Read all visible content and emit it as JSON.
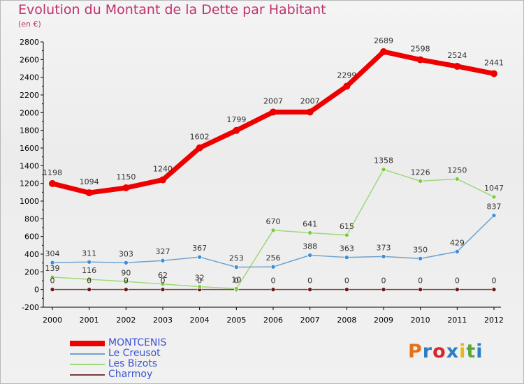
{
  "header": {
    "title": "Evolution du Montant de la Dette par Habitant",
    "subtitle": "(en €)"
  },
  "branding": {
    "logo_text": "Proxiti",
    "logo_colors": [
      "#e8701a",
      "#2a7fc4",
      "#d8262c",
      "#2a7fc4",
      "#e8b71a",
      "#58a83a",
      "#2a7fc4"
    ]
  },
  "chart_data": {
    "type": "line",
    "title": "Evolution du Montant de la Dette par Habitant",
    "ylabel": "(en €)",
    "xlabel": "",
    "x": [
      "2000",
      "2001",
      "2002",
      "2003",
      "2004",
      "2005",
      "2006",
      "2007",
      "2008",
      "2009",
      "2010",
      "2011",
      "2012"
    ],
    "ylim": [
      -200,
      2800
    ],
    "yticks": [
      -200,
      0,
      200,
      400,
      600,
      800,
      1000,
      1200,
      1400,
      1600,
      1800,
      2000,
      2200,
      2400,
      2600,
      2800
    ],
    "grid": false,
    "legend_position": "bottom-left",
    "series": [
      {
        "name": "MONTCENIS",
        "color": "#ee0000",
        "marker_color": "#ee0000",
        "values": [
          1198,
          1094,
          1150,
          1240,
          1602,
          1799,
          2007,
          2007,
          2299,
          2689,
          2598,
          2524,
          2441
        ],
        "labels": [
          "1198",
          "1094",
          "1150",
          "1240",
          "1602",
          "1799",
          "2007",
          "2007",
          "2299",
          "2689",
          "2598",
          "2524",
          "2441"
        ]
      },
      {
        "name": "Le Creusot",
        "color": "#6fa2cc",
        "marker_color": "#3d8ed8",
        "values": [
          304,
          311,
          303,
          327,
          367,
          253,
          256,
          388,
          363,
          373,
          350,
          429,
          837
        ],
        "labels": [
          "304",
          "311",
          "303",
          "327",
          "367",
          "253",
          "256",
          "388",
          "363",
          "373",
          "350",
          "429",
          "837"
        ]
      },
      {
        "name": "Les Bizots",
        "color": "#9ed87a",
        "marker_color": "#7bcd3c",
        "values": [
          139,
          116,
          90,
          62,
          32,
          10,
          670,
          641,
          615,
          1358,
          1226,
          1250,
          1047
        ],
        "labels": [
          "139",
          "116",
          "90",
          "62",
          "32",
          "10",
          "670",
          "641",
          "615",
          "1358",
          "1226",
          "1250",
          "1047"
        ]
      },
      {
        "name": "Charmoy",
        "color": "#7a3b3b",
        "marker_color": "#6a1a1a",
        "values": [
          0,
          0,
          0,
          0,
          0,
          0,
          0,
          0,
          0,
          0,
          0,
          0,
          0
        ],
        "labels": [
          "0",
          "0",
          "0",
          "0",
          "0",
          "0",
          "0",
          "0",
          "0",
          "0",
          "0",
          "0",
          "0"
        ]
      }
    ]
  }
}
